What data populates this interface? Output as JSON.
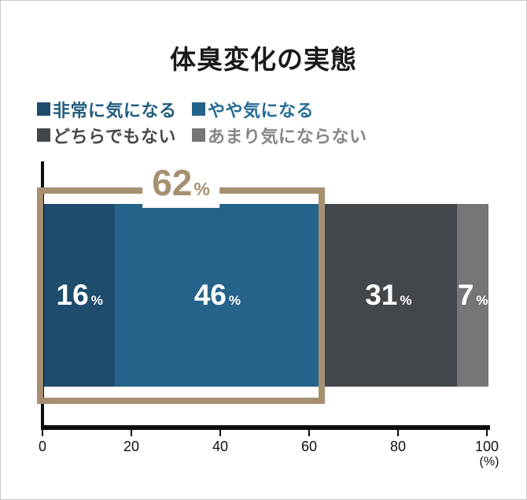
{
  "title": "体臭変化の実態",
  "chart_data": {
    "type": "bar",
    "orientation": "horizontal-stacked",
    "title": "体臭変化の実態",
    "value_unit": "%",
    "series": [
      {
        "name": "非常に気になる",
        "value": 16,
        "color": "#1e4c6c",
        "text_color": "#215c80"
      },
      {
        "name": "やや気になる",
        "value": 46,
        "color": "#25638b",
        "text_color": "#266b94"
      },
      {
        "name": "どちらでもない",
        "value": 31,
        "color": "#42474c",
        "text_color": "#46494e"
      },
      {
        "name": "あまり気にならない",
        "value": 7,
        "color": "#767679",
        "text_color": "#85858a"
      }
    ],
    "x_ticks": [
      0,
      20,
      40,
      60,
      80,
      100
    ],
    "xlim": [
      0,
      100
    ],
    "x_axis_unit": "(%)",
    "annotation": {
      "value": 62,
      "unit": "%",
      "covers": [
        "非常に気になる",
        "やや気になる"
      ],
      "color": "#a69071"
    },
    "legend_position": "top-left",
    "grid": false,
    "axis_color": "#0d0d0d",
    "background": "#ffffff"
  }
}
